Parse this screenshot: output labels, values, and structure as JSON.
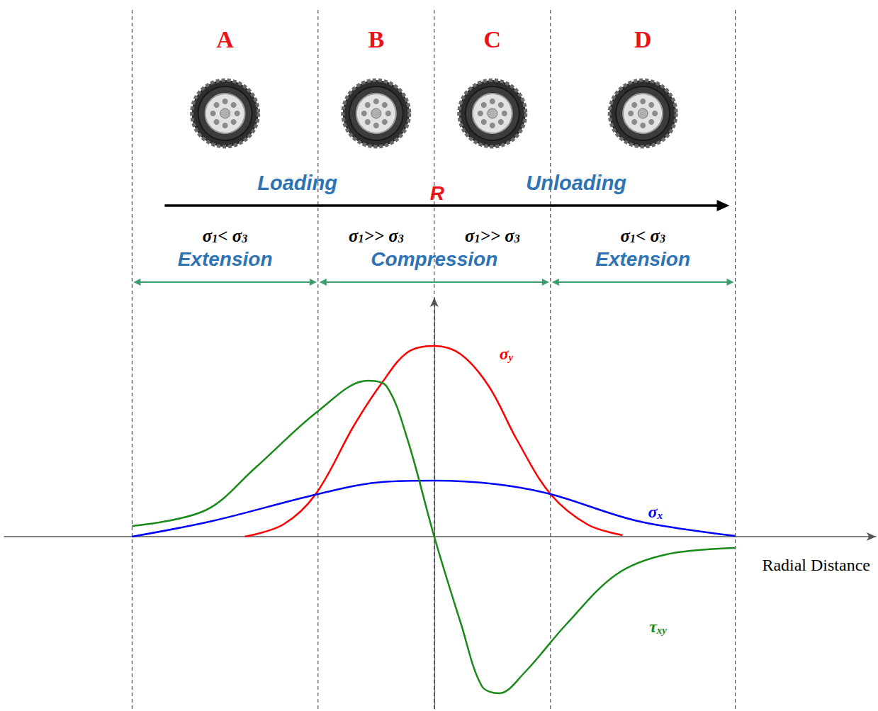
{
  "chart_data": {
    "type": "line",
    "x_label": "Radial Distance",
    "xlim": [
      -3.7,
      3.8
    ],
    "ylim": [
      -2.43,
      3.37
    ],
    "tick_labels": false,
    "grid": false,
    "series": [
      {
        "name": "σy",
        "color": "#ff0000",
        "x": [
          -1.63,
          -1.3,
          -1.02,
          -0.69,
          -0.45,
          -0.23,
          0,
          0.23,
          0.47,
          0.71,
          1.0,
          1.32,
          1.62
        ],
        "values": [
          0,
          0.17,
          0.6,
          1.57,
          2.17,
          2.6,
          2.69,
          2.57,
          2.12,
          1.37,
          0.6,
          0.17,
          0.02
        ]
      },
      {
        "name": "σx",
        "color": "#0000ff",
        "x": [
          -2.6,
          -1.91,
          -1.0,
          -0.45,
          0,
          0.53,
          1.0,
          1.75,
          2.59
        ],
        "values": [
          0,
          0.22,
          0.6,
          0.77,
          0.79,
          0.74,
          0.6,
          0.22,
          0.01
        ]
      },
      {
        "name": "τxy",
        "color": "#1a8a1a",
        "x": [
          -2.6,
          -1.97,
          -1.54,
          -1.0,
          -0.57,
          -0.41,
          -0.23,
          0,
          0.23,
          0.41,
          0.56,
          0.77,
          1.14,
          1.57,
          2.0,
          2.59
        ],
        "values": [
          0.15,
          0.37,
          0.97,
          1.77,
          2.2,
          2.12,
          1.37,
          0,
          -1.23,
          -2.11,
          -2.21,
          -1.93,
          -1.23,
          -0.53,
          -0.25,
          -0.16
        ]
      }
    ],
    "boundaries": [
      -2.6,
      -1.0,
      0,
      1.0,
      2.59
    ],
    "zones": [
      {
        "letter": "A",
        "stress": "σ1< σ3"
      },
      {
        "letter": "B",
        "stress": "σ1>> σ3"
      },
      {
        "letter": "C",
        "stress": "σ1>> σ3"
      },
      {
        "letter": "D",
        "stress": "σ1< σ3"
      }
    ],
    "phases": [
      "Loading",
      "Unloading"
    ],
    "center_label": "R",
    "regimes": [
      {
        "label": "Extension",
        "from": -2.6,
        "to": -1.0
      },
      {
        "label": "Compression",
        "from": -1.0,
        "to": 1.0
      },
      {
        "label": "Extension",
        "from": 1.0,
        "to": 2.59
      }
    ]
  }
}
